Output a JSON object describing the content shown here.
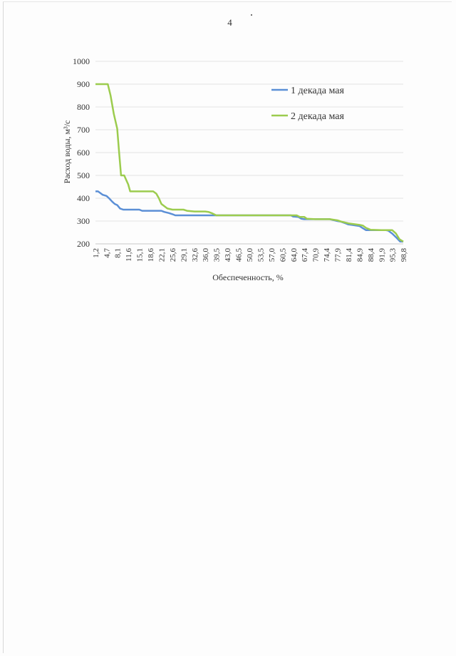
{
  "page": {
    "number": "4"
  },
  "chart_data": {
    "type": "line",
    "title": "",
    "xlabel": "Обеспеченность, %",
    "ylabel": "Расход воды, м³/с",
    "ylim": [
      200,
      1000
    ],
    "yticks": [
      200,
      300,
      400,
      500,
      600,
      700,
      800,
      900,
      1000
    ],
    "grid": true,
    "legend_position": "top-right",
    "x_tick_labels": [
      "1,2",
      "4,7",
      "8,1",
      "11,6",
      "15,1",
      "18,6",
      "22,1",
      "25,6",
      "29,1",
      "32,6",
      "36,0",
      "39,5",
      "43,0",
      "46,5",
      "50,0",
      "53,5",
      "57,0",
      "60,5",
      "64,0",
      "67,4",
      "70,9",
      "74,4",
      "77,9",
      "81,4",
      "84,9",
      "88,4",
      "91,9",
      "95,3",
      "98,8"
    ],
    "series": [
      {
        "name": "1 декада мая",
        "color": "#5b8fd6",
        "x": [
          1.2,
          2.0,
          2.5,
          3.5,
          4.7,
          5.5,
          6.5,
          7.3,
          8.1,
          9.0,
          10.0,
          11.6,
          12.5,
          15.1,
          16.0,
          18.6,
          21.0,
          22.1,
          23.0,
          24.5,
          25.6,
          26.5,
          29.1,
          32.6,
          36.0,
          39.5,
          43.0,
          50.0,
          57.0,
          63.2,
          63.8,
          65.5,
          66.5,
          67.4,
          70.9,
          74.4,
          75.5,
          77.9,
          78.8,
          80.5,
          81.4,
          82.5,
          84.9,
          85.8,
          87.0,
          88.4,
          91.9,
          93.3,
          94.0,
          95.3,
          96.8,
          97.8,
          98.8
        ],
        "y": [
          430,
          430,
          425,
          415,
          410,
          400,
          385,
          375,
          370,
          355,
          350,
          350,
          350,
          350,
          345,
          345,
          345,
          345,
          340,
          335,
          330,
          325,
          325,
          325,
          325,
          325,
          325,
          325,
          325,
          325,
          320,
          318,
          310,
          308,
          308,
          308,
          308,
          300,
          298,
          290,
          285,
          283,
          278,
          270,
          260,
          260,
          260,
          260,
          258,
          245,
          225,
          210,
          210
        ]
      },
      {
        "name": "2 декада мая",
        "color": "#9ccc4e",
        "x": [
          1.2,
          3.0,
          4.7,
          5.1,
          6.0,
          7.0,
          8.1,
          8.7,
          9.3,
          10.3,
          11.6,
          12.2,
          15.1,
          18.6,
          19.5,
          20.5,
          21.3,
          22.1,
          24.0,
          25.6,
          29.1,
          30.2,
          32.6,
          36.0,
          37.0,
          38.0,
          39.5,
          50.0,
          57.0,
          60.5,
          64.0,
          65.0,
          66.0,
          67.4,
          68.2,
          70.9,
          74.4,
          75.5,
          77.9,
          79.0,
          81.4,
          84.9,
          86.0,
          87.0,
          88.4,
          91.9,
          95.3,
          96.5,
          97.6,
          98.8
        ],
        "y": [
          900,
          900,
          900,
          900,
          850,
          770,
          705,
          600,
          500,
          500,
          460,
          430,
          430,
          430,
          430,
          420,
          400,
          375,
          355,
          350,
          350,
          345,
          342,
          342,
          340,
          335,
          325,
          325,
          325,
          325,
          325,
          325,
          318,
          318,
          310,
          308,
          308,
          308,
          303,
          298,
          290,
          283,
          280,
          270,
          262,
          260,
          260,
          245,
          220,
          210
        ]
      }
    ]
  }
}
